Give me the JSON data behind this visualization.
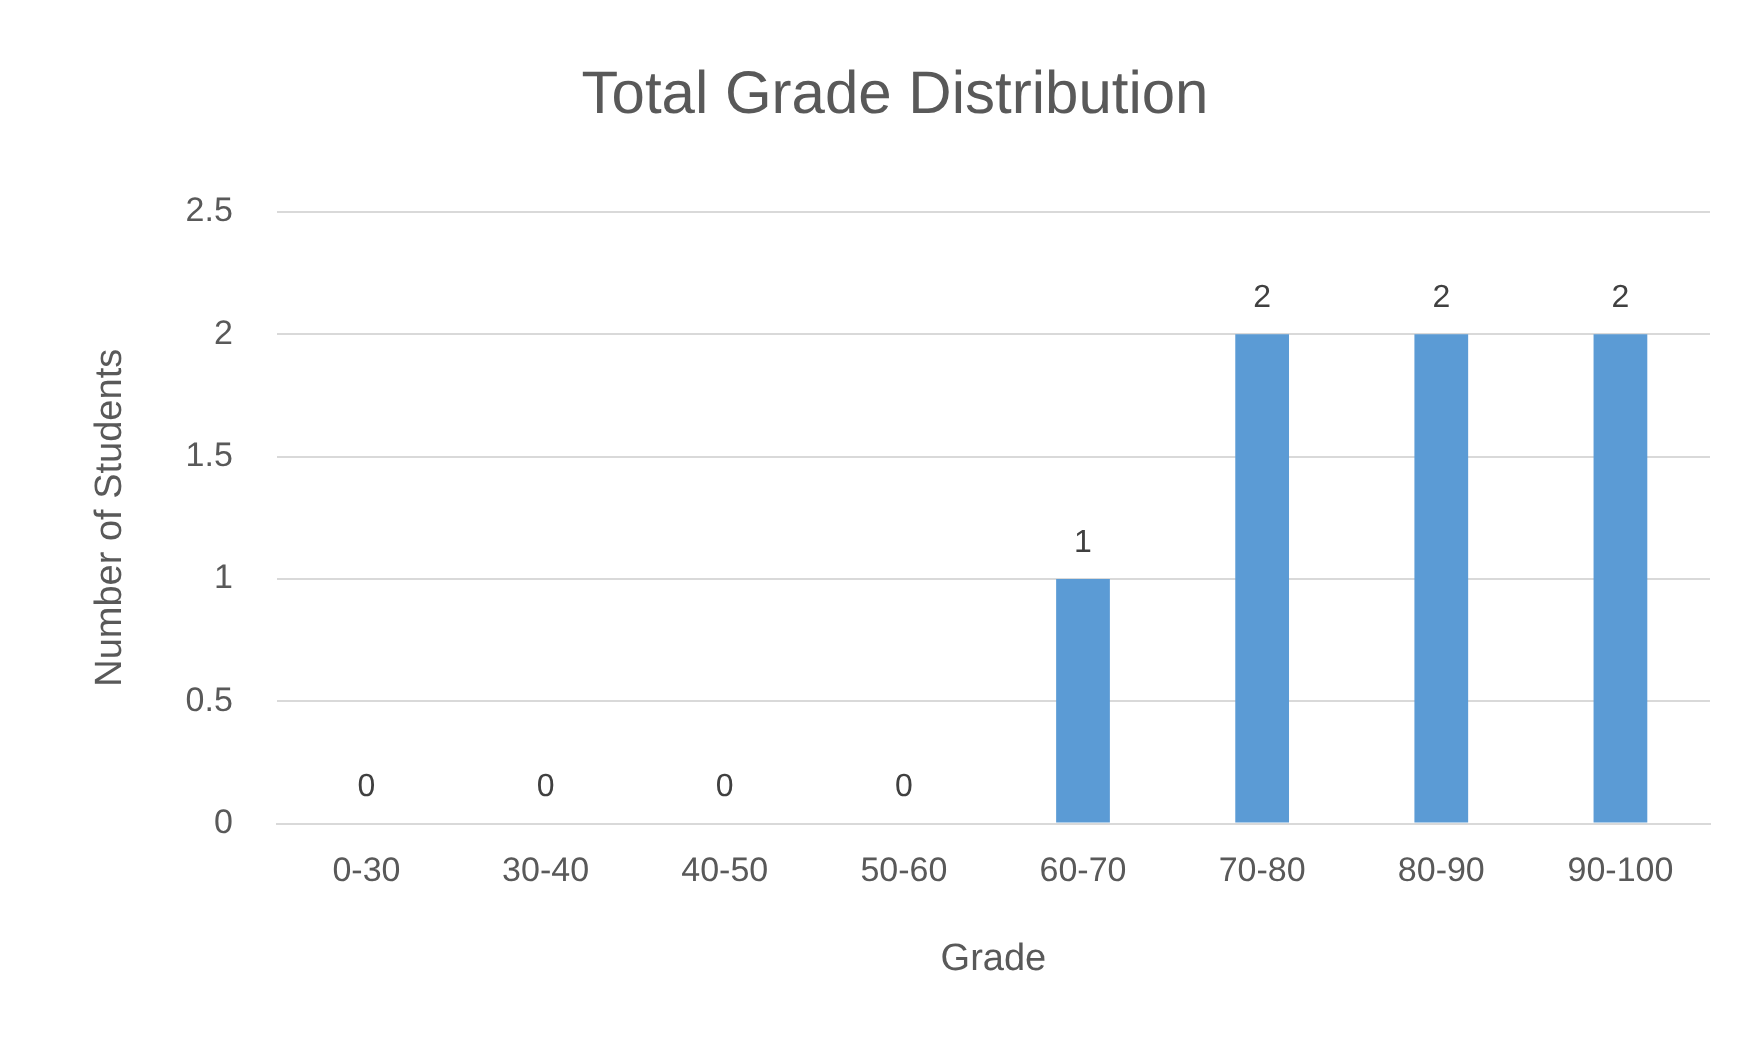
{
  "chart_data": {
    "type": "bar",
    "title": "Total Grade Distribution",
    "xlabel": "Grade",
    "ylabel": "Number of Students",
    "categories": [
      "0-30",
      "30-40",
      "40-50",
      "50-60",
      "60-70",
      "70-80",
      "80-90",
      "90-100"
    ],
    "values": [
      0,
      0,
      0,
      0,
      1,
      2,
      2,
      2
    ],
    "color": "#5b9bd5",
    "ylim": [
      0,
      2.5
    ],
    "yticks": [
      0,
      0.5,
      1,
      1.5,
      2,
      2.5
    ],
    "grid": "y",
    "data_labels": true
  }
}
